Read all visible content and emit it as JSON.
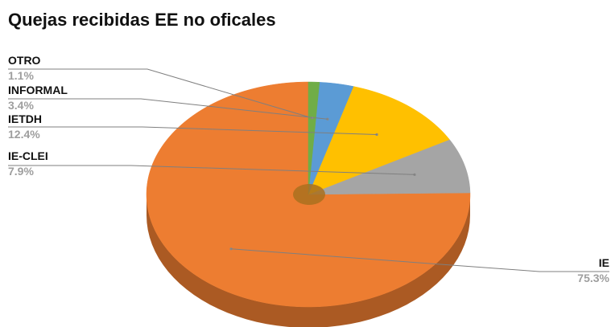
{
  "chart_data": {
    "type": "pie",
    "title": "Quejas recibidas EE no oficales",
    "style": "3d",
    "categories": [
      "IE",
      "IE-CLEI",
      "IETDH",
      "INFORMAL",
      "OTRO"
    ],
    "values": [
      75.3,
      7.9,
      12.4,
      3.4,
      1.1
    ],
    "value_labels": [
      "75.3%",
      "7.9%",
      "12.4%",
      "3.4%",
      "1.1%"
    ],
    "colors": [
      "#ED7D31",
      "#A5A5A5",
      "#FFC000",
      "#5B9BD5",
      "#70AD47"
    ],
    "start_angle_deg": 0,
    "direction": "counterclockwise"
  }
}
